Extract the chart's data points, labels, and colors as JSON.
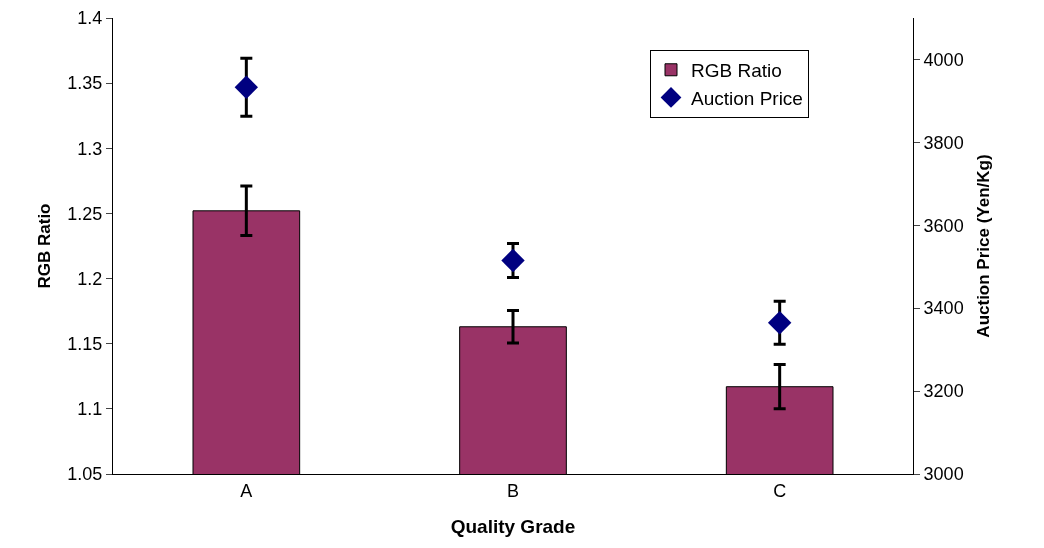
{
  "chart_data": {
    "type": "bar",
    "xlabel": "Quality Grade",
    "ylabel": "RGB Ratio",
    "y2label": "Auction Price (Yen/Kg)",
    "categories": [
      "A",
      "B",
      "C"
    ],
    "series": [
      {
        "name": "RGB Ratio",
        "color": "#993366",
        "values": [
          1.252,
          1.163,
          1.117
        ],
        "errors": [
          0.019,
          0.0125,
          0.017
        ]
      },
      {
        "name": "Auction Price",
        "type": "scatter",
        "axis": "y2",
        "color": "#000080",
        "marker": "diamond",
        "values": [
          3933,
          3515,
          3365
        ],
        "errors": [
          70,
          41,
          52
        ]
      }
    ],
    "ylim": [
      1.05,
      1.4
    ],
    "yticks": [
      1.05,
      1.1,
      1.15,
      1.2,
      1.25,
      1.3,
      1.35,
      1.4
    ],
    "y2lim": [
      3000,
      4100
    ],
    "y2ticks": [
      3000,
      3200,
      3400,
      3600,
      3800,
      4000
    ],
    "grid": false,
    "legend": "top right"
  }
}
